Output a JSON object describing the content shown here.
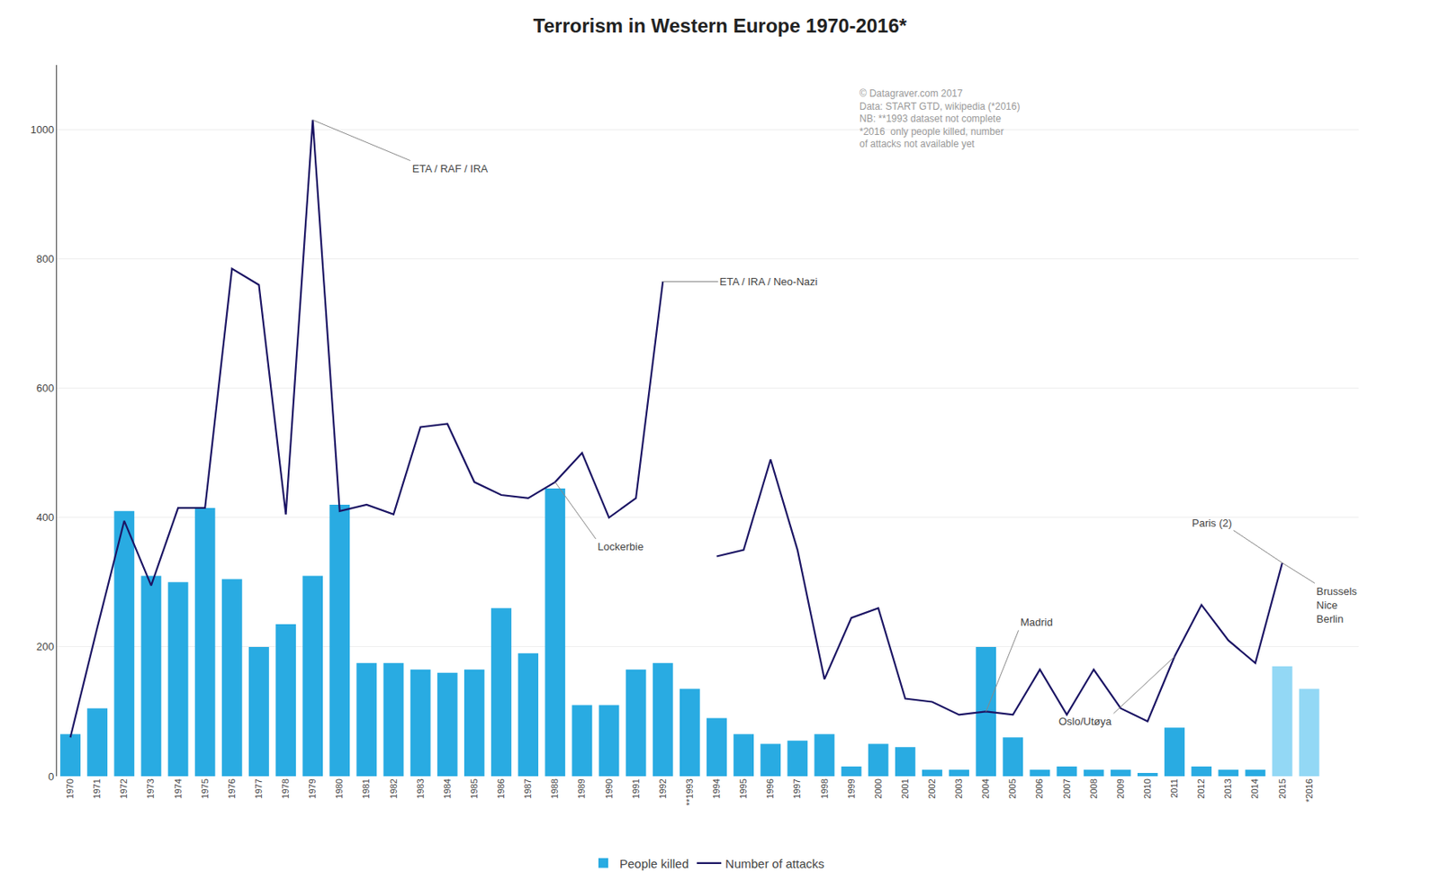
{
  "chart_data": {
    "type": "bar",
    "title": "Terrorism in Western Europe 1970-2016*",
    "categories": [
      "1970",
      "1971",
      "1972",
      "1973",
      "1974",
      "1975",
      "1976",
      "1977",
      "1978",
      "1979",
      "1980",
      "1981",
      "1982",
      "1983",
      "1984",
      "1985",
      "1986",
      "1987",
      "1988",
      "1989",
      "1990",
      "1991",
      "1992",
      "**1993",
      "1994",
      "1995",
      "1996",
      "1997",
      "1998",
      "1999",
      "2000",
      "2001",
      "2002",
      "2003",
      "2004",
      "2005",
      "2006",
      "2007",
      "2008",
      "2009",
      "2010",
      "2011",
      "2012",
      "2013",
      "2014",
      "2015",
      "*2016"
    ],
    "series": [
      {
        "name": "People killed",
        "type": "bar",
        "colors": [
          "#29ABE2",
          "#29ABE2",
          "#29ABE2",
          "#29ABE2",
          "#29ABE2",
          "#29ABE2",
          "#29ABE2",
          "#29ABE2",
          "#29ABE2",
          "#29ABE2",
          "#29ABE2",
          "#29ABE2",
          "#29ABE2",
          "#29ABE2",
          "#29ABE2",
          "#29ABE2",
          "#29ABE2",
          "#29ABE2",
          "#29ABE2",
          "#29ABE2",
          "#29ABE2",
          "#29ABE2",
          "#29ABE2",
          "#29ABE2",
          "#29ABE2",
          "#29ABE2",
          "#29ABE2",
          "#29ABE2",
          "#29ABE2",
          "#29ABE2",
          "#29ABE2",
          "#29ABE2",
          "#29ABE2",
          "#29ABE2",
          "#29ABE2",
          "#29ABE2",
          "#29ABE2",
          "#29ABE2",
          "#29ABE2",
          "#29ABE2",
          "#29ABE2",
          "#29ABE2",
          "#29ABE2",
          "#29ABE2",
          "#29ABE2",
          "#93D8F5",
          "#93D8F5"
        ],
        "values": [
          65,
          105,
          410,
          310,
          300,
          415,
          305,
          200,
          235,
          310,
          420,
          175,
          175,
          165,
          160,
          165,
          260,
          190,
          445,
          110,
          110,
          165,
          175,
          135,
          90,
          65,
          50,
          55,
          65,
          15,
          50,
          45,
          10,
          10,
          200,
          60,
          10,
          15,
          10,
          10,
          5,
          75,
          15,
          10,
          10,
          170,
          135
        ]
      },
      {
        "name": "Number of attacks",
        "type": "line",
        "color": "#1B1464",
        "values": [
          60,
          230,
          395,
          295,
          415,
          415,
          785,
          760,
          405,
          1015,
          410,
          420,
          405,
          540,
          545,
          455,
          435,
          430,
          455,
          500,
          400,
          430,
          765,
          null,
          340,
          350,
          490,
          350,
          150,
          245,
          260,
          120,
          115,
          95,
          100,
          95,
          165,
          95,
          165,
          105,
          85,
          185,
          265,
          210,
          175,
          330,
          null
        ]
      }
    ],
    "ylim": [
      0,
      1100
    ],
    "yticks": [
      0,
      200,
      400,
      600,
      800,
      1000
    ],
    "grid": true,
    "legend": "bottom",
    "annotations": [
      {
        "text": "ETA / RAF / IRA",
        "category": "1979"
      },
      {
        "text": "ETA / IRA / Neo-Nazi",
        "category": "1992"
      },
      {
        "text": "Lockerbie",
        "category": "1988"
      },
      {
        "text": "Madrid",
        "category": "2004"
      },
      {
        "text": "Oslo/Utøya",
        "category": "2011"
      },
      {
        "text": "Paris (2)",
        "category": "2015"
      },
      {
        "text": "Brussels\nNice\nBerlin",
        "category": "2015"
      },
      {
        "text": "© Datagraver.com 2017\nData: START GTD, wikipedia (*2016)\nNB: **1993 dataset not complete\n*2016  only people killed, number\nof attacks not available yet"
      }
    ]
  }
}
